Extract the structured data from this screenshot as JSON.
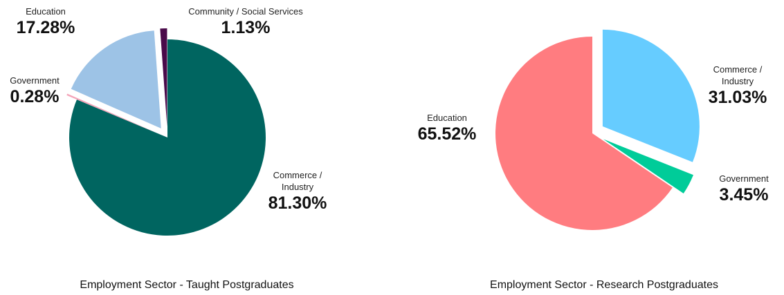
{
  "chart_data": [
    {
      "type": "pie",
      "title": "Employment Sector - Taught Postgraduates",
      "slices": [
        {
          "label": "Commerce / Industry",
          "label_lines": [
            "Commerce /",
            "Industry"
          ],
          "value": 81.3,
          "pct_text": "81.30%",
          "color": "#006560",
          "exploded": false
        },
        {
          "label": "Government",
          "label_lines": [
            "Government"
          ],
          "value": 0.28,
          "pct_text": "0.28%",
          "color": "#f4a3b8",
          "exploded": true
        },
        {
          "label": "Education",
          "label_lines": [
            "Education"
          ],
          "value": 17.28,
          "pct_text": "17.28%",
          "color": "#9dc3e6",
          "exploded": true
        },
        {
          "label": "Community / Social Services",
          "label_lines": [
            "Community / Social Services"
          ],
          "value": 1.13,
          "pct_text": "1.13%",
          "color": "#4a0a4a",
          "exploded": true
        }
      ]
    },
    {
      "type": "pie",
      "title": "Employment Sector - Research Postgraduates",
      "slices": [
        {
          "label": "Commerce / Industry",
          "label_lines": [
            "Commerce /",
            "Industry"
          ],
          "value": 31.03,
          "pct_text": "31.03%",
          "color": "#66ccff",
          "exploded": true
        },
        {
          "label": "Government",
          "label_lines": [
            "Government"
          ],
          "value": 3.45,
          "pct_text": "3.45%",
          "color": "#00cc99",
          "exploded": true
        },
        {
          "label": "Education",
          "label_lines": [
            "Education"
          ],
          "value": 65.52,
          "pct_text": "65.52%",
          "color": "#ff7c80",
          "exploded": false
        }
      ]
    }
  ]
}
